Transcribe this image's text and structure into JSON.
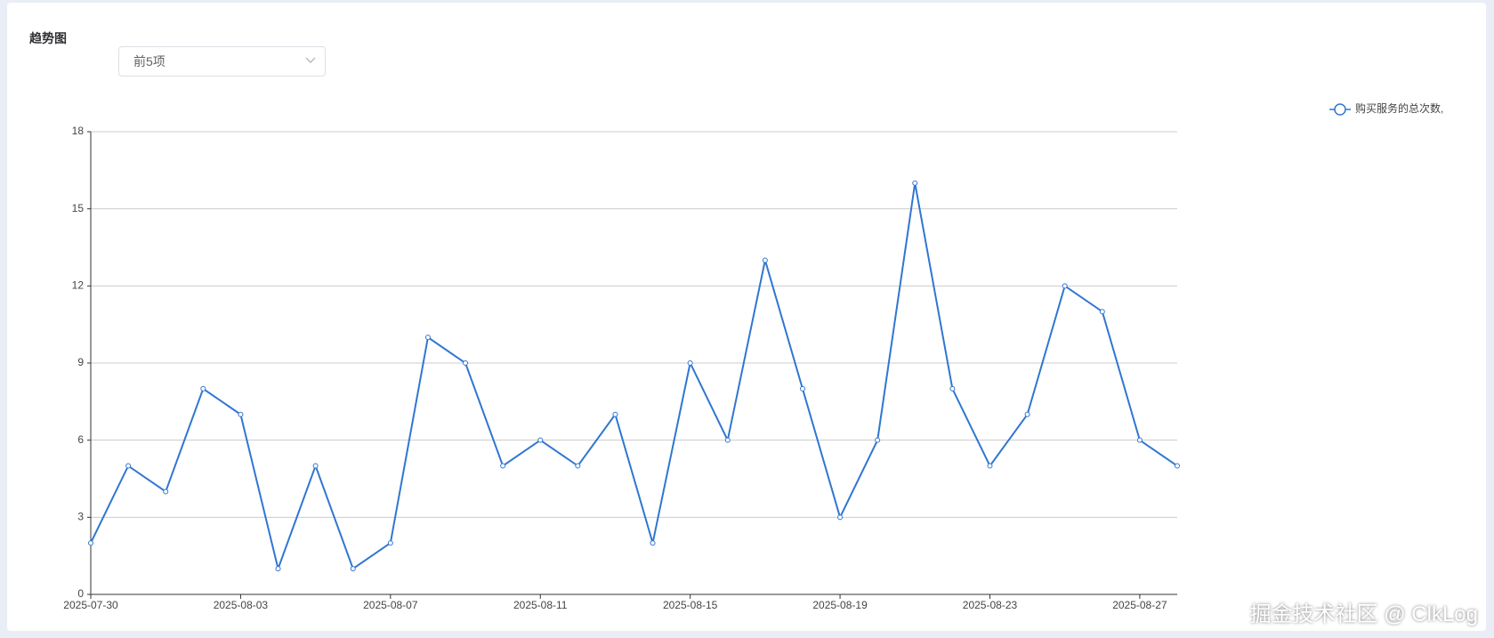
{
  "header": {
    "title": "趋势图"
  },
  "select": {
    "value": "前5项"
  },
  "watermark": "掘金技术社区 @ ClkLog",
  "chart_data": {
    "type": "line",
    "categories": [
      "2025-07-30",
      null,
      null,
      null,
      "2025-08-03",
      null,
      null,
      null,
      "2025-08-07",
      null,
      null,
      null,
      "2025-08-11",
      null,
      null,
      null,
      "2025-08-15",
      null,
      null,
      null,
      "2025-08-19",
      null,
      null,
      null,
      "2025-08-23",
      null,
      null,
      null,
      "2025-08-27",
      null
    ],
    "series": [
      {
        "name": "购买服务的总次数,",
        "color": "#3076d1",
        "values": [
          2,
          5,
          4,
          8,
          7,
          1,
          5,
          1,
          2,
          10,
          9,
          5,
          6,
          5,
          7,
          2,
          9,
          6,
          13,
          8,
          3,
          6,
          16,
          8,
          5,
          7,
          12,
          11,
          6,
          5
        ]
      }
    ],
    "ylim": [
      0,
      18
    ],
    "yticks": [
      0,
      3,
      6,
      9,
      12,
      15,
      18
    ],
    "grid": true,
    "legend": "top-right"
  }
}
